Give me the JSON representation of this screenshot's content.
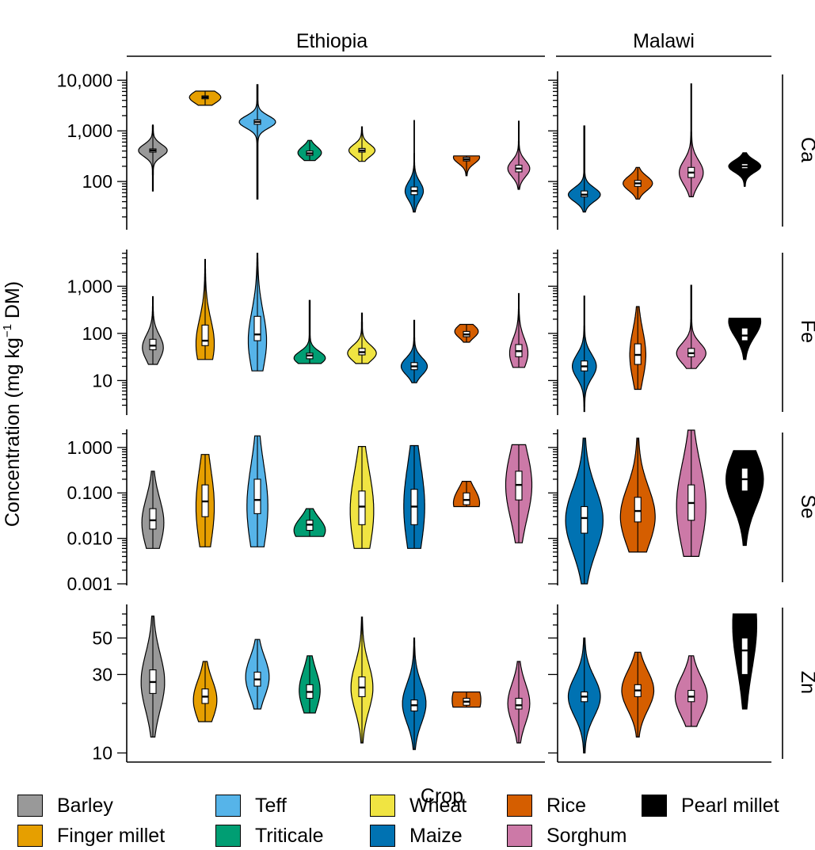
{
  "chart_data": {
    "type": "violin",
    "xlabel": "Crop",
    "ylabel": "Concentration (mg kg⁻¹ DM)",
    "ylabel_parts": {
      "main": "Concentration (mg kg",
      "sup": "−1",
      "tail": " DM)"
    },
    "y_scale": "log",
    "countries": [
      "Ethiopia",
      "Malawi"
    ],
    "crops_by_country": {
      "Ethiopia": [
        "Barley",
        "Finger millet",
        "Teff",
        "Triticale",
        "Wheat",
        "Maize",
        "Rice",
        "Sorghum"
      ],
      "Malawi": [
        "Maize",
        "Rice",
        "Sorghum",
        "Pearl millet"
      ]
    },
    "colors": {
      "Barley": "#999999",
      "Finger millet": "#E69F00",
      "Teff": "#56B4E9",
      "Triticale": "#009E73",
      "Wheat": "#F0E442",
      "Maize": "#0072B2",
      "Rice": "#D55E00",
      "Sorghum": "#CC79A7",
      "Pearl millet": "#000000"
    },
    "panels": [
      {
        "nutrient": "Ca",
        "ylim": [
          12,
          15000
        ],
        "ticks": [
          100,
          1000,
          10000
        ],
        "tick_labels": [
          "100",
          "1,000",
          "10,000"
        ],
        "minor_ticks": [
          20,
          30,
          40,
          50,
          60,
          70,
          80,
          90,
          200,
          300,
          400,
          500,
          600,
          700,
          800,
          900,
          2000,
          3000,
          4000,
          5000,
          6000,
          7000,
          8000,
          9000
        ],
        "data": {
          "Ethiopia": [
            {
              "crop": "Barley",
              "min": 65,
              "q1": 380,
              "median": 410,
              "q3": 440,
              "max": 1300,
              "mode": 410,
              "width": 0.55
            },
            {
              "crop": "Finger millet",
              "min": 3200,
              "q1": 4300,
              "median": 4600,
              "q3": 4900,
              "max": 6100,
              "mode": 4600,
              "width": 0.6
            },
            {
              "crop": "Teff",
              "min": 45,
              "q1": 1350,
              "median": 1500,
              "q3": 1650,
              "max": 8200,
              "mode": 1500,
              "width": 0.7
            },
            {
              "crop": "Triticale",
              "min": 260,
              "q1": 330,
              "median": 360,
              "q3": 400,
              "max": 650,
              "mode": 370,
              "width": 0.45
            },
            {
              "crop": "Wheat",
              "min": 250,
              "q1": 380,
              "median": 410,
              "q3": 450,
              "max": 1200,
              "mode": 410,
              "width": 0.5
            },
            {
              "crop": "Maize",
              "min": 25,
              "q1": 55,
              "median": 65,
              "q3": 78,
              "max": 1600,
              "mode": 65,
              "width": 0.35
            },
            {
              "crop": "Rice",
              "min": 130,
              "q1": 255,
              "median": 275,
              "q3": 300,
              "max": 320,
              "mode": 300,
              "width": 0.5
            },
            {
              "crop": "Sorghum",
              "min": 70,
              "q1": 155,
              "median": 180,
              "q3": 210,
              "max": 1550,
              "mode": 180,
              "width": 0.42
            }
          ],
          "Malawi": [
            {
              "crop": "Maize",
              "min": 25,
              "q1": 50,
              "median": 55,
              "q3": 65,
              "max": 1250,
              "mode": 55,
              "width": 0.6
            },
            {
              "crop": "Rice",
              "min": 45,
              "q1": 80,
              "median": 92,
              "q3": 105,
              "max": 190,
              "mode": 92,
              "width": 0.55
            },
            {
              "crop": "Sorghum",
              "min": 50,
              "q1": 120,
              "median": 150,
              "q3": 190,
              "max": 8500,
              "mode": 150,
              "width": 0.45
            },
            {
              "crop": "Pearl millet",
              "min": 80,
              "q1": 180,
              "median": 200,
              "q3": 225,
              "max": 370,
              "mode": 200,
              "width": 0.6
            }
          ]
        }
      },
      {
        "nutrient": "Fe",
        "ylim": [
          2,
          6000
        ],
        "ticks": [
          10,
          100,
          1000
        ],
        "tick_labels": [
          "10",
          "100",
          "1,000"
        ],
        "minor_ticks": [
          3,
          4,
          5,
          6,
          7,
          8,
          9,
          20,
          30,
          40,
          50,
          60,
          70,
          80,
          90,
          200,
          300,
          400,
          500,
          600,
          700,
          800,
          900,
          2000,
          3000,
          4000,
          5000
        ],
        "data": {
          "Ethiopia": [
            {
              "crop": "Barley",
              "min": 22,
              "q1": 45,
              "median": 55,
              "q3": 75,
              "max": 600,
              "mode": 50,
              "width": 0.4
            },
            {
              "crop": "Finger millet",
              "min": 28,
              "q1": 55,
              "median": 70,
              "q3": 150,
              "max": 3700,
              "mode": 60,
              "width": 0.35
            },
            {
              "crop": "Teff",
              "min": 16,
              "q1": 70,
              "median": 95,
              "q3": 230,
              "max": 5000,
              "mode": 70,
              "width": 0.35
            },
            {
              "crop": "Triticale",
              "min": 23,
              "q1": 29,
              "median": 34,
              "q3": 38,
              "max": 500,
              "mode": 30,
              "width": 0.6
            },
            {
              "crop": "Wheat",
              "min": 23,
              "q1": 35,
              "median": 40,
              "q3": 48,
              "max": 270,
              "mode": 38,
              "width": 0.55
            },
            {
              "crop": "Maize",
              "min": 9,
              "q1": 17,
              "median": 20,
              "q3": 24,
              "max": 190,
              "mode": 20,
              "width": 0.5
            },
            {
              "crop": "Rice",
              "min": 65,
              "q1": 85,
              "median": 95,
              "q3": 110,
              "max": 155,
              "mode": 110,
              "width": 0.45
            },
            {
              "crop": "Sorghum",
              "min": 19,
              "q1": 32,
              "median": 42,
              "q3": 58,
              "max": 700,
              "mode": 38,
              "width": 0.35
            }
          ],
          "Malawi": [
            {
              "crop": "Maize",
              "min": 2.2,
              "q1": 16,
              "median": 20,
              "q3": 26,
              "max": 620,
              "mode": 20,
              "width": 0.45
            },
            {
              "crop": "Rice",
              "min": 6.5,
              "q1": 22,
              "median": 35,
              "q3": 60,
              "max": 370,
              "mode": 35,
              "width": 0.3
            },
            {
              "crop": "Sorghum",
              "min": 18,
              "q1": 32,
              "median": 38,
              "q3": 48,
              "max": 1050,
              "mode": 38,
              "width": 0.55
            },
            {
              "crop": "Pearl millet",
              "min": 28,
              "q1": 70,
              "median": 90,
              "q3": 130,
              "max": 210,
              "mode": 180,
              "width": 0.6
            }
          ]
        }
      },
      {
        "nutrient": "Se",
        "ylim": [
          0.001,
          2.5
        ],
        "ticks": [
          0.001,
          0.01,
          0.1,
          1
        ],
        "tick_labels": [
          "0.001",
          "0.010",
          "0.100",
          "1.000"
        ],
        "minor_ticks": [
          0.002,
          0.003,
          0.004,
          0.005,
          0.006,
          0.007,
          0.008,
          0.009,
          0.02,
          0.03,
          0.04,
          0.05,
          0.06,
          0.07,
          0.08,
          0.09,
          0.2,
          0.3,
          0.4,
          0.5,
          0.6,
          0.7,
          0.8,
          0.9,
          2
        ],
        "data": {
          "Ethiopia": [
            {
              "crop": "Barley",
              "min": 0.006,
              "q1": 0.016,
              "median": 0.025,
              "q3": 0.045,
              "max": 0.3,
              "mode": 0.022,
              "width": 0.42
            },
            {
              "crop": "Finger millet",
              "min": 0.0065,
              "q1": 0.03,
              "median": 0.065,
              "q3": 0.15,
              "max": 0.7,
              "mode": 0.05,
              "width": 0.35
            },
            {
              "crop": "Teff",
              "min": 0.0065,
              "q1": 0.035,
              "median": 0.07,
              "q3": 0.2,
              "max": 1.8,
              "mode": 0.05,
              "width": 0.4
            },
            {
              "crop": "Triticale",
              "min": 0.011,
              "q1": 0.015,
              "median": 0.02,
              "q3": 0.025,
              "max": 0.045,
              "mode": 0.015,
              "width": 0.6
            },
            {
              "crop": "Wheat",
              "min": 0.006,
              "q1": 0.02,
              "median": 0.05,
              "q3": 0.11,
              "max": 1.05,
              "mode": 0.04,
              "width": 0.45
            },
            {
              "crop": "Maize",
              "min": 0.006,
              "q1": 0.02,
              "median": 0.05,
              "q3": 0.12,
              "max": 1.1,
              "mode": 0.05,
              "width": 0.4
            },
            {
              "crop": "Rice",
              "min": 0.05,
              "q1": 0.055,
              "median": 0.07,
              "q3": 0.1,
              "max": 0.18,
              "mode": 0.06,
              "width": 0.5
            },
            {
              "crop": "Sorghum",
              "min": 0.008,
              "q1": 0.07,
              "median": 0.15,
              "q3": 0.3,
              "max": 1.15,
              "mode": 0.15,
              "width": 0.5
            }
          ],
          "Malawi": [
            {
              "crop": "Maize",
              "min": 0.001,
              "q1": 0.013,
              "median": 0.028,
              "q3": 0.05,
              "max": 1.6,
              "mode": 0.025,
              "width": 0.7
            },
            {
              "crop": "Rice",
              "min": 0.005,
              "q1": 0.023,
              "median": 0.04,
              "q3": 0.08,
              "max": 1.6,
              "mode": 0.03,
              "width": 0.65
            },
            {
              "crop": "Sorghum",
              "min": 0.004,
              "q1": 0.025,
              "median": 0.06,
              "q3": 0.15,
              "max": 2.4,
              "mode": 0.05,
              "width": 0.55
            },
            {
              "crop": "Pearl millet",
              "min": 0.007,
              "q1": 0.11,
              "median": 0.2,
              "q3": 0.35,
              "max": 0.85,
              "mode": 0.2,
              "width": 0.7
            }
          ]
        }
      },
      {
        "nutrient": "Zn",
        "ylim": [
          9,
          80
        ],
        "ticks": [
          10,
          30,
          50
        ],
        "tick_labels": [
          "10",
          "30",
          "50"
        ],
        "minor_ticks": [
          20,
          40,
          60,
          70
        ],
        "data": {
          "Ethiopia": [
            {
              "crop": "Barley",
              "min": 12.5,
              "q1": 23,
              "median": 27,
              "q3": 32,
              "max": 68,
              "mode": 27,
              "width": 0.45
            },
            {
              "crop": "Finger millet",
              "min": 15.5,
              "q1": 20,
              "median": 22,
              "q3": 24.5,
              "max": 36,
              "mode": 21,
              "width": 0.45
            },
            {
              "crop": "Teff",
              "min": 18.5,
              "q1": 25.5,
              "median": 28,
              "q3": 31,
              "max": 49,
              "mode": 29,
              "width": 0.45
            },
            {
              "crop": "Triticale",
              "min": 17.5,
              "q1": 21.5,
              "median": 23.5,
              "q3": 26,
              "max": 39,
              "mode": 24,
              "width": 0.4
            },
            {
              "crop": "Wheat",
              "min": 11.5,
              "q1": 22,
              "median": 25,
              "q3": 29,
              "max": 67,
              "mode": 25,
              "width": 0.42
            },
            {
              "crop": "Maize",
              "min": 10.5,
              "q1": 18,
              "median": 19.5,
              "q3": 21,
              "max": 50,
              "mode": 20,
              "width": 0.45
            },
            {
              "crop": "Rice",
              "min": 19,
              "q1": 19.5,
              "median": 20.5,
              "q3": 21.5,
              "max": 23.5,
              "mode": 21,
              "width": 0.55
            },
            {
              "crop": "Sorghum",
              "min": 11.5,
              "q1": 18.5,
              "median": 19.5,
              "q3": 21.5,
              "max": 36,
              "mode": 20,
              "width": 0.42
            }
          ],
          "Malawi": [
            {
              "crop": "Maize",
              "min": 10,
              "q1": 20.5,
              "median": 22,
              "q3": 23.5,
              "max": 50,
              "mode": 22,
              "width": 0.6
            },
            {
              "crop": "Rice",
              "min": 12.5,
              "q1": 22,
              "median": 24,
              "q3": 26,
              "max": 41,
              "mode": 24,
              "width": 0.6
            },
            {
              "crop": "Sorghum",
              "min": 14.5,
              "q1": 20.5,
              "median": 22,
              "q3": 24,
              "max": 39,
              "mode": 22,
              "width": 0.6
            },
            {
              "crop": "Pearl millet",
              "min": 18.5,
              "q1": 30,
              "median": 42,
              "q3": 50,
              "max": 70,
              "mode": 60,
              "width": 0.45
            }
          ]
        }
      }
    ],
    "legend": [
      "Barley",
      "Teff",
      "Wheat",
      "Rice",
      "Pearl millet",
      "Finger millet",
      "Triticale",
      "Maize",
      "Sorghum"
    ]
  }
}
